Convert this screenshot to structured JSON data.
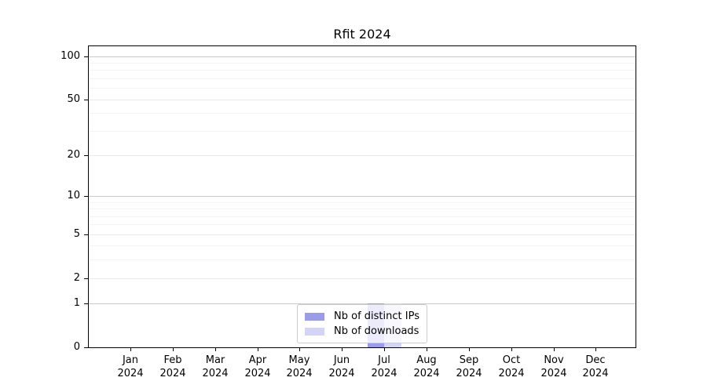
{
  "figure": {
    "title": "Rfit 2024",
    "background": "#ffffff"
  },
  "chart_data": {
    "type": "bar",
    "title": "Rfit 2024",
    "categories": [
      "Jan 2024",
      "Feb 2024",
      "Mar 2024",
      "Apr 2024",
      "May 2024",
      "Jun 2024",
      "Jul 2024",
      "Aug 2024",
      "Sep 2024",
      "Oct 2024",
      "Nov 2024",
      "Dec 2024"
    ],
    "series": [
      {
        "name": "Nb of distinct IPs",
        "color": "#9b9beb",
        "values": [
          0,
          0,
          0,
          0,
          0,
          0,
          1,
          0,
          0,
          0,
          0,
          0
        ]
      },
      {
        "name": "Nb of downloads",
        "color": "#d4d4f6",
        "values": [
          0,
          0,
          0,
          0,
          0,
          0,
          1,
          0,
          0,
          0,
          0,
          0
        ]
      }
    ],
    "xlabel": "",
    "ylabel": "",
    "y_axis": {
      "scale": "log1p",
      "ticks": [
        0,
        1,
        2,
        5,
        10,
        20,
        50,
        100
      ],
      "major_gridlines": [
        1,
        10,
        100
      ],
      "mid_gridlines": [
        2,
        5,
        20,
        50
      ],
      "minor_gridlines": [
        3,
        4,
        6,
        7,
        8,
        9,
        30,
        40,
        60,
        70,
        80,
        90
      ],
      "max": 117
    },
    "grid": true,
    "legend_position": "lower center",
    "colors": {
      "grid_major": "#c9c9c9",
      "grid_mid": "#e9e9e9",
      "grid_minor": "#f4f4f4",
      "spine": "#000000",
      "text": "#000000"
    }
  }
}
